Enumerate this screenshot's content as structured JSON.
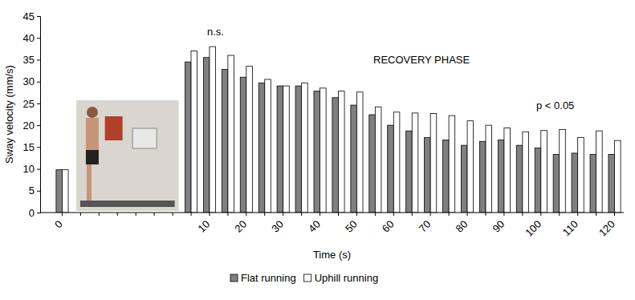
{
  "chart_data": {
    "type": "bar",
    "x_label": "Time (s)",
    "y_label": "Sway velocity (mm/s)",
    "annotations": [
      "n.s.",
      "RECOVERY PHASE",
      "p < 0.05"
    ],
    "categories": [
      "0",
      null,
      null,
      null,
      null,
      null,
      null,
      null,
      "10",
      null,
      "20",
      null,
      "30",
      null,
      "40",
      null,
      "50",
      null,
      "60",
      null,
      "70",
      null,
      "80",
      null,
      "90",
      null,
      "100",
      null,
      "110",
      null,
      "120"
    ],
    "series": [
      {
        "name": "Flat running",
        "color": "#808080",
        "values": [
          9.8,
          null,
          null,
          null,
          null,
          null,
          null,
          34.5,
          35.5,
          32.8,
          31,
          29.7,
          29,
          29,
          27.8,
          26.3,
          24.6,
          22.4,
          20,
          18.7,
          17.2,
          16.6,
          15.4,
          16.3,
          16.6,
          15.4,
          14.8,
          13.3,
          13.6,
          13.3,
          13.3
        ]
      },
      {
        "name": "Uphill running",
        "color": "#ffffff",
        "values": [
          9.8,
          null,
          null,
          null,
          null,
          null,
          null,
          37,
          38,
          36,
          33.5,
          30.5,
          29,
          29.7,
          28.5,
          27.8,
          27.6,
          24.2,
          23,
          22.8,
          22.7,
          22.2,
          21,
          20,
          19.4,
          18.5,
          18.8,
          19,
          17.2,
          18.7,
          16.5
        ]
      }
    ],
    "ylim": [
      0,
      45
    ],
    "yticks": [
      0,
      5,
      10,
      15,
      20,
      25,
      30,
      35,
      40,
      45
    ],
    "grid": false,
    "legend": "bottom"
  }
}
